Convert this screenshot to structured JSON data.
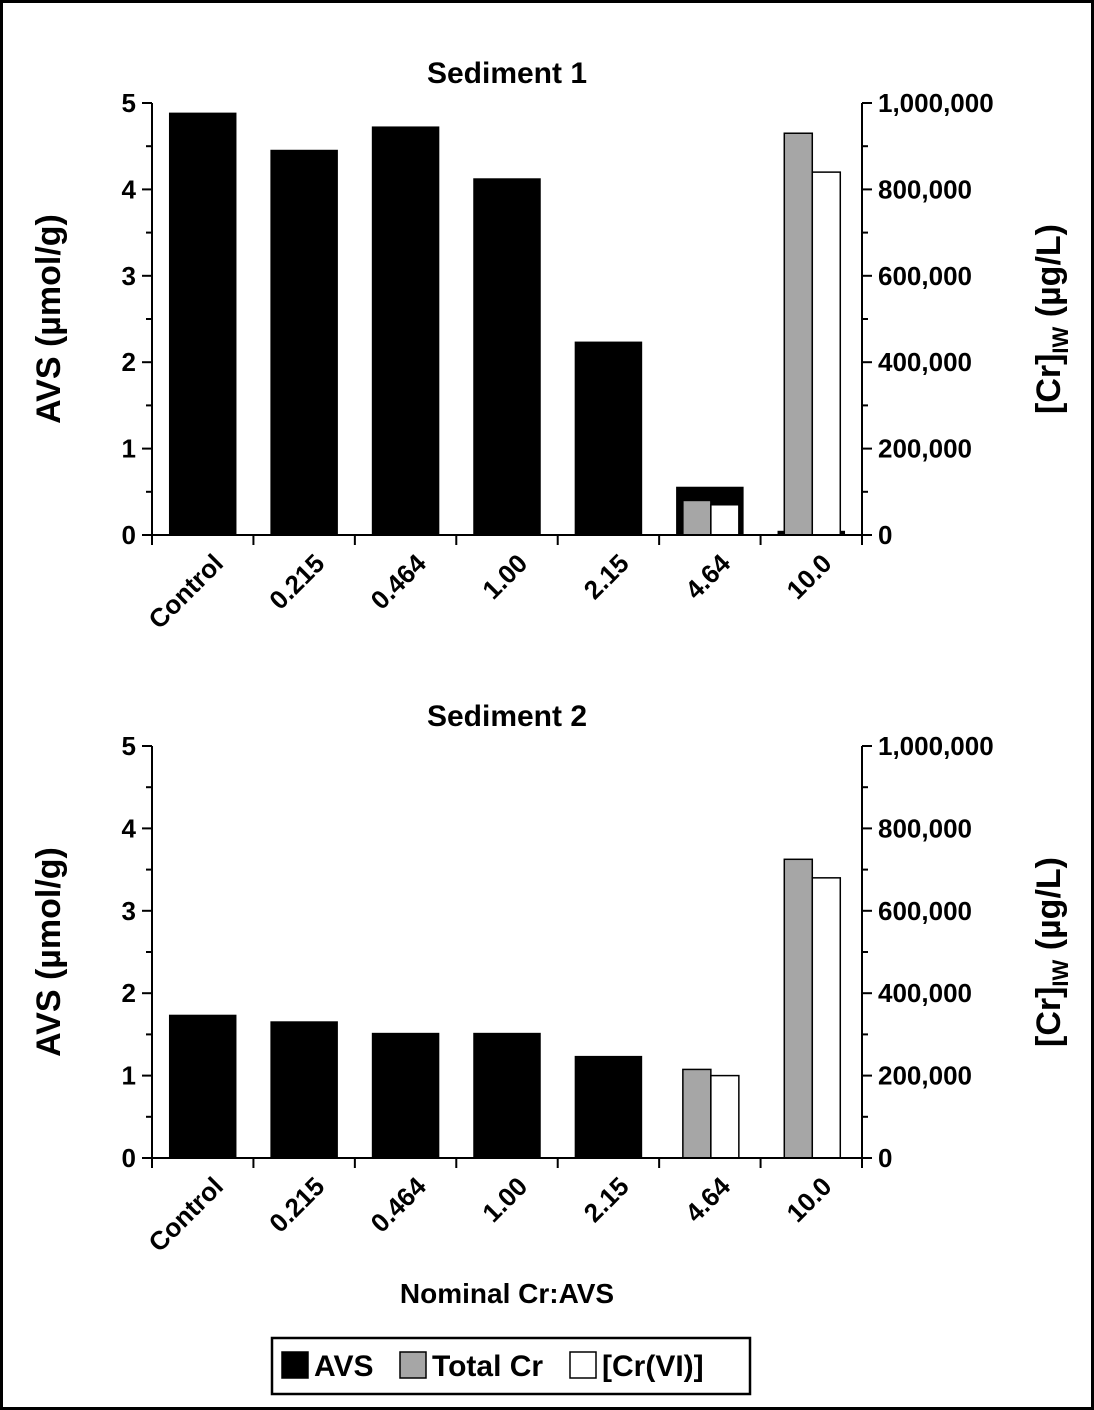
{
  "chart_data": [
    {
      "type": "bar",
      "title": "Sediment 1",
      "xlabel": "",
      "ylabel": "AVS (µmol/g)",
      "y2label": "[Cr]IW (µg/L)",
      "ylim": [
        0,
        5
      ],
      "y2lim": [
        0,
        1000000
      ],
      "categories": [
        "Control",
        "0.215",
        "0.464",
        "1.00",
        "2.15",
        "4.64",
        "10.0"
      ],
      "yticks": [
        "0",
        "1",
        "2",
        "3",
        "4",
        "5"
      ],
      "y2ticks": [
        "0",
        "200,000",
        "400,000",
        "600,000",
        "800,000",
        "1,000,000"
      ],
      "series": [
        {
          "name": "AVS",
          "axis": "left",
          "values": [
            4.88,
            4.45,
            4.72,
            4.12,
            2.23,
            0.55,
            0.04
          ]
        },
        {
          "name": "Total Cr",
          "axis": "right",
          "values": [
            0,
            0,
            0,
            0,
            0,
            80000,
            930000
          ]
        },
        {
          "name": "[Cr(VI)]",
          "axis": "right",
          "values": [
            0,
            0,
            0,
            0,
            0,
            70000,
            840000
          ]
        }
      ]
    },
    {
      "type": "bar",
      "title": "Sediment 2",
      "xlabel": "Nominal Cr:AVS",
      "ylabel": "AVS (µmol/g)",
      "y2label": "[Cr]IW (µg/L)",
      "ylim": [
        0,
        5
      ],
      "y2lim": [
        0,
        1000000
      ],
      "categories": [
        "Control",
        "0.215",
        "0.464",
        "1.00",
        "2.15",
        "4.64",
        "10.0"
      ],
      "yticks": [
        "0",
        "1",
        "2",
        "3",
        "4",
        "5"
      ],
      "y2ticks": [
        "0",
        "200,000",
        "400,000",
        "600,000",
        "800,000",
        "1,000,000"
      ],
      "series": [
        {
          "name": "AVS",
          "axis": "left",
          "values": [
            1.73,
            1.65,
            1.51,
            1.51,
            1.23,
            0,
            0
          ]
        },
        {
          "name": "Total Cr",
          "axis": "right",
          "values": [
            0,
            0,
            0,
            0,
            0,
            215000,
            725000
          ]
        },
        {
          "name": "[Cr(VI)]",
          "axis": "right",
          "values": [
            0,
            0,
            0,
            0,
            0,
            200000,
            680000
          ]
        }
      ]
    }
  ],
  "legend": {
    "placement": "bottom",
    "items": [
      {
        "label": "AVS",
        "color": "#000000"
      },
      {
        "label": "Total Cr",
        "color": "#a6a6a6"
      },
      {
        "label": "[Cr(VI)]",
        "color": "#ffffff"
      }
    ]
  },
  "colors": {
    "avs": "#000000",
    "total_cr": "#a6a6a6",
    "cr_vi": "#ffffff"
  }
}
